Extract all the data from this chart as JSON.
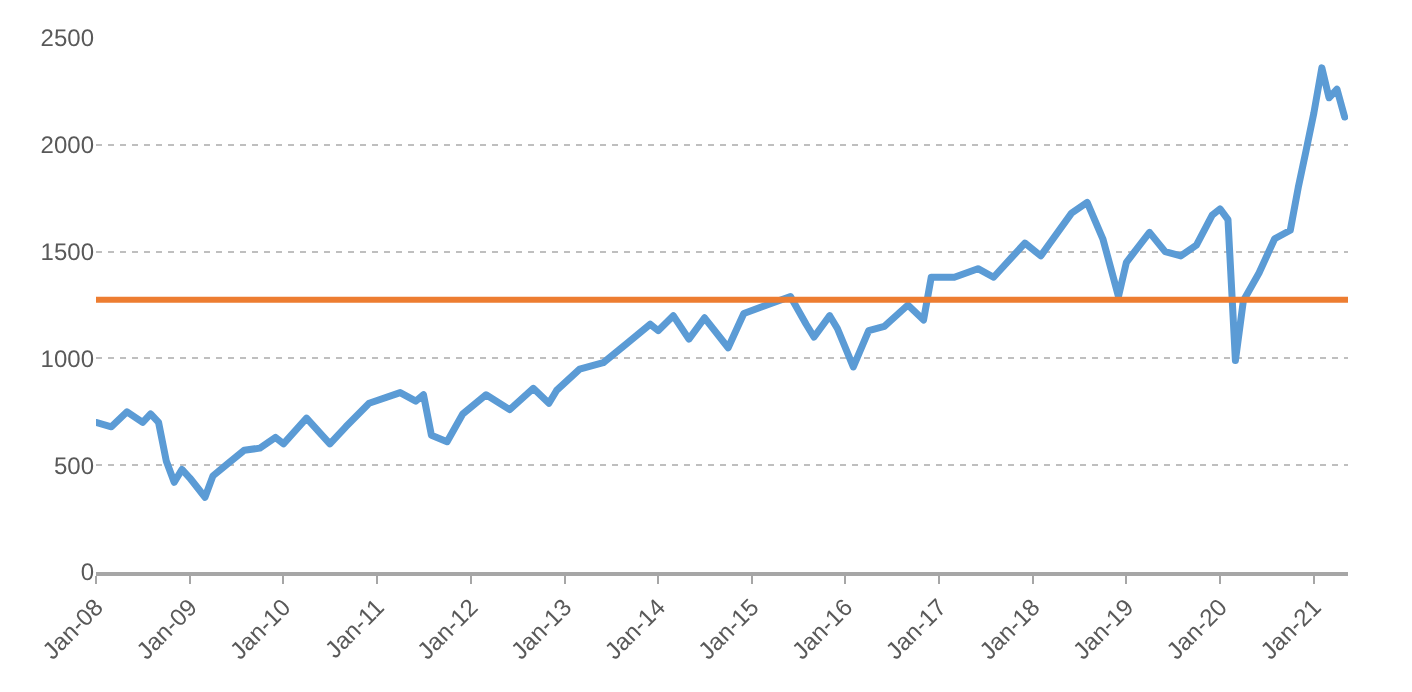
{
  "chart_data": {
    "type": "line",
    "x": [
      "2008-01",
      "2008-03",
      "2008-05",
      "2008-07",
      "2008-08",
      "2008-09",
      "2008-10",
      "2008-11",
      "2008-12",
      "2009-01",
      "2009-03",
      "2009-04",
      "2009-06",
      "2009-08",
      "2009-10",
      "2009-12",
      "2010-01",
      "2010-04",
      "2010-07",
      "2010-09",
      "2010-12",
      "2011-04",
      "2011-06",
      "2011-07",
      "2011-08",
      "2011-10",
      "2011-12",
      "2012-03",
      "2012-06",
      "2012-09",
      "2012-11",
      "2012-12",
      "2013-03",
      "2013-06",
      "2013-09",
      "2013-12",
      "2014-01",
      "2014-03",
      "2014-05",
      "2014-07",
      "2014-10",
      "2014-12",
      "2015-03",
      "2015-06",
      "2015-08",
      "2015-09",
      "2015-11",
      "2015-12",
      "2016-02",
      "2016-04",
      "2016-06",
      "2016-09",
      "2016-11",
      "2016-12",
      "2017-03",
      "2017-06",
      "2017-08",
      "2017-12",
      "2018-02",
      "2018-06",
      "2018-08",
      "2018-10",
      "2018-12",
      "2019-01",
      "2019-04",
      "2019-06",
      "2019-08",
      "2019-10",
      "2019-12",
      "2020-01",
      "2020-02",
      "2020-03",
      "2020-04",
      "2020-06",
      "2020-08",
      "2020-10",
      "2020-11",
      "2020-12",
      "2021-01",
      "2021-02",
      "2021-03",
      "2021-04",
      "2021-05"
    ],
    "series": [
      {
        "color": "#5b9bd5",
        "values": [
          700,
          680,
          750,
          700,
          740,
          700,
          520,
          420,
          480,
          440,
          350,
          450,
          510,
          570,
          580,
          630,
          600,
          720,
          600,
          680,
          790,
          840,
          800,
          830,
          640,
          610,
          740,
          830,
          760,
          860,
          790,
          850,
          950,
          980,
          1070,
          1160,
          1130,
          1200,
          1090,
          1190,
          1050,
          1210,
          1250,
          1290,
          1160,
          1100,
          1200,
          1140,
          960,
          1130,
          1150,
          1250,
          1180,
          1380,
          1380,
          1420,
          1380,
          1540,
          1480,
          1680,
          1730,
          1560,
          1290,
          1450,
          1590,
          1500,
          1480,
          1530,
          1670,
          1700,
          1650,
          990,
          1270,
          1400,
          1560,
          1600,
          1800,
          1970,
          2150,
          2360,
          2220,
          2260,
          2130
        ]
      }
    ],
    "ref_lines": [
      {
        "axis": "y",
        "value": 1275,
        "color": "#ed7d31"
      }
    ],
    "xlim": [
      "2008-01-01",
      "2021-05-14"
    ],
    "xticks": [
      {
        "value": "2008-01-01",
        "label": "Jan-08"
      },
      {
        "value": "2009-01-01",
        "label": "Jan-09"
      },
      {
        "value": "2010-01-01",
        "label": "Jan-10"
      },
      {
        "value": "2011-01-01",
        "label": "Jan-11"
      },
      {
        "value": "2012-01-01",
        "label": "Jan-12"
      },
      {
        "value": "2013-01-01",
        "label": "Jan-13"
      },
      {
        "value": "2014-01-01",
        "label": "Jan-14"
      },
      {
        "value": "2015-01-01",
        "label": "Jan-15"
      },
      {
        "value": "2016-01-01",
        "label": "Jan-16"
      },
      {
        "value": "2017-01-01",
        "label": "Jan-17"
      },
      {
        "value": "2018-01-01",
        "label": "Jan-18"
      },
      {
        "value": "2019-01-01",
        "label": "Jan-19"
      },
      {
        "value": "2020-01-01",
        "label": "Jan-20"
      },
      {
        "value": "2021-01-01",
        "label": "Jan-21"
      }
    ],
    "ylim": [
      0,
      2500
    ],
    "yticks": [
      0,
      500,
      1000,
      1500,
      2000,
      2500
    ],
    "grid": "y",
    "marker": "none",
    "line_style": "solid"
  }
}
